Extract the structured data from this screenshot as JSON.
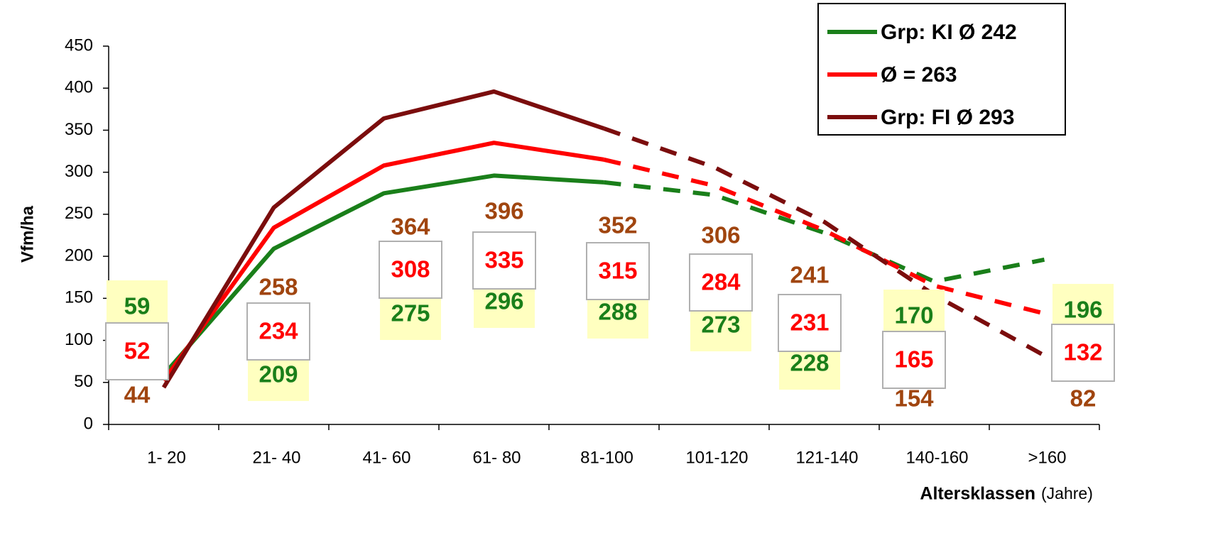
{
  "chart_data": {
    "type": "line",
    "y_label": "Vfm/ha",
    "x_label": "Altersklassen",
    "x_label_unit": "(Jahre)",
    "categories": [
      "1- 20",
      "21- 40",
      "41- 60",
      "61- 80",
      "81-100",
      "101-120",
      "121-140",
      "140-160",
      ">160"
    ],
    "series": [
      {
        "name": "Grp: KI Ø 242",
        "color": "#1a7f1a",
        "label_color": "#1a7f1a",
        "values": [
          59,
          209,
          275,
          296,
          288,
          273,
          228,
          170,
          196
        ]
      },
      {
        "name": "Ø = 263",
        "color": "#ff0000",
        "label_color": "#ff0000",
        "values": [
          52,
          234,
          308,
          335,
          315,
          284,
          231,
          165,
          132
        ]
      },
      {
        "name": "Grp: FI Ø 293",
        "color": "#7b0d0d",
        "label_color": "#a0450f",
        "values": [
          44,
          258,
          364,
          396,
          352,
          306,
          241,
          154,
          82
        ]
      }
    ],
    "ylim": [
      0,
      450
    ],
    "yticks": [
      0,
      50,
      100,
      150,
      200,
      250,
      300,
      350,
      400,
      450
    ],
    "legend": "top-right"
  }
}
